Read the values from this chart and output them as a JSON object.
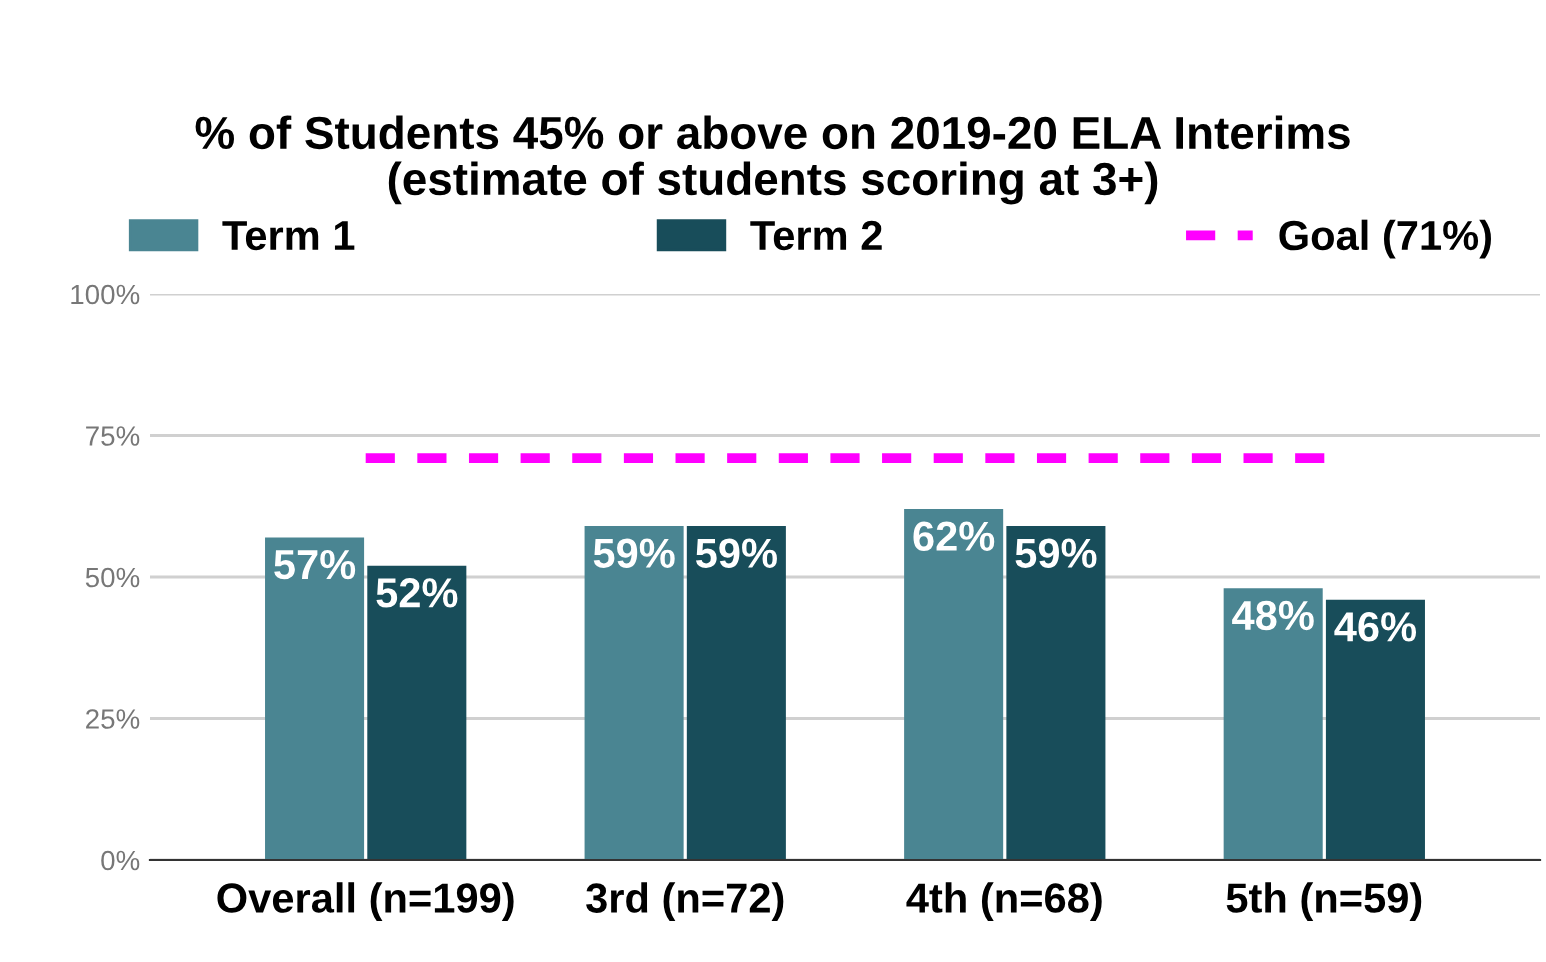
{
  "chart_data": {
    "type": "bar",
    "title": "% of Students 45% or above on 2019-20 ELA Interims\n(estimate of students scoring at 3+)",
    "categories": [
      "Overall (n=199)",
      "3rd (n=72)",
      "4th (n=68)",
      "5th (n=59)"
    ],
    "series": [
      {
        "name": "Term 1",
        "color": "#4a8592",
        "values": [
          57,
          59,
          62,
          48
        ],
        "value_labels": [
          "57%",
          "59%",
          "62%",
          "48%"
        ]
      },
      {
        "name": "Term 2",
        "color": "#184d5a",
        "values": [
          52,
          59,
          59,
          46
        ],
        "value_labels": [
          "52%",
          "59%",
          "59%",
          "46%"
        ]
      },
      {
        "name": "Goal (71%)",
        "type": "line",
        "color": "#ff00ff",
        "line_style": "dashed",
        "values": [
          71,
          71,
          71,
          71
        ]
      }
    ],
    "ylim": [
      0,
      100
    ],
    "yticks": [
      {
        "value": 0,
        "label": "0%"
      },
      {
        "value": 25,
        "label": "25%"
      },
      {
        "value": 50,
        "label": "50%"
      },
      {
        "value": 75,
        "label": "75%"
      },
      {
        "value": 100,
        "label": "100%"
      }
    ],
    "grid": "y",
    "legend": "top"
  }
}
